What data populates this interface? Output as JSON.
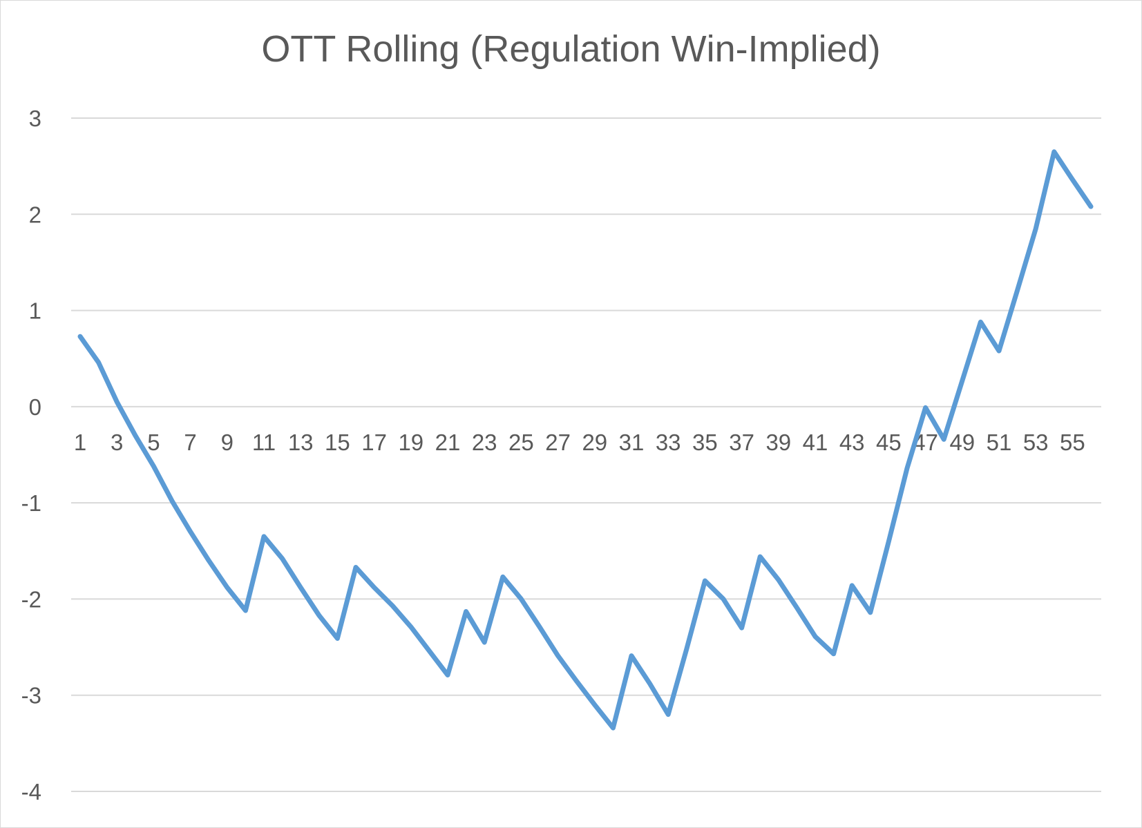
{
  "chart_data": {
    "type": "line",
    "title": "OTT Rolling (Regulation Win-Implied)",
    "xlabel": "",
    "ylabel": "",
    "ylim": [
      -4,
      3
    ],
    "yticks": [
      "3",
      "2",
      "1",
      "0",
      "-1",
      "-2",
      "-3",
      "-4"
    ],
    "xtick_labels": [
      "1",
      "3",
      "5",
      "7",
      "9",
      "11",
      "13",
      "15",
      "17",
      "19",
      "21",
      "23",
      "25",
      "27",
      "29",
      "31",
      "33",
      "35",
      "37",
      "39",
      "41",
      "43",
      "45",
      "47",
      "49",
      "51",
      "53",
      "55"
    ],
    "grid": true,
    "legend": "none",
    "color": "#5B9BD5",
    "series": [
      {
        "x": [
          1,
          2,
          3,
          4,
          5,
          6,
          7,
          8,
          9,
          10,
          11,
          12,
          13,
          14,
          15,
          16,
          17,
          18,
          19,
          20,
          21,
          22,
          23,
          24,
          25,
          26,
          27,
          28,
          29,
          30,
          31,
          32,
          33,
          34,
          35,
          36,
          37,
          38,
          39,
          40,
          41,
          42,
          43,
          44,
          45,
          46,
          47,
          48,
          49,
          50,
          51,
          52,
          53,
          54,
          55,
          56
        ],
        "values": [
          0.73,
          0.46,
          0.05,
          -0.3,
          -0.62,
          -0.98,
          -1.3,
          -1.6,
          -1.88,
          -2.12,
          -1.35,
          -1.58,
          -1.88,
          -2.17,
          -2.41,
          -1.67,
          -1.88,
          -2.07,
          -2.29,
          -2.54,
          -2.79,
          -2.13,
          -2.45,
          -1.77,
          -2.0,
          -2.29,
          -2.59,
          -2.85,
          -3.1,
          -3.34,
          -2.59,
          -2.88,
          -3.2,
          -2.52,
          -1.81,
          -2.0,
          -2.3,
          -1.56,
          -1.8,
          -2.09,
          -2.39,
          -2.57,
          -1.86,
          -2.14,
          -1.4,
          -0.64,
          -0.01,
          -0.34,
          0.27,
          0.88,
          0.58,
          1.21,
          1.85,
          2.65,
          2.36,
          2.08
        ]
      }
    ]
  }
}
